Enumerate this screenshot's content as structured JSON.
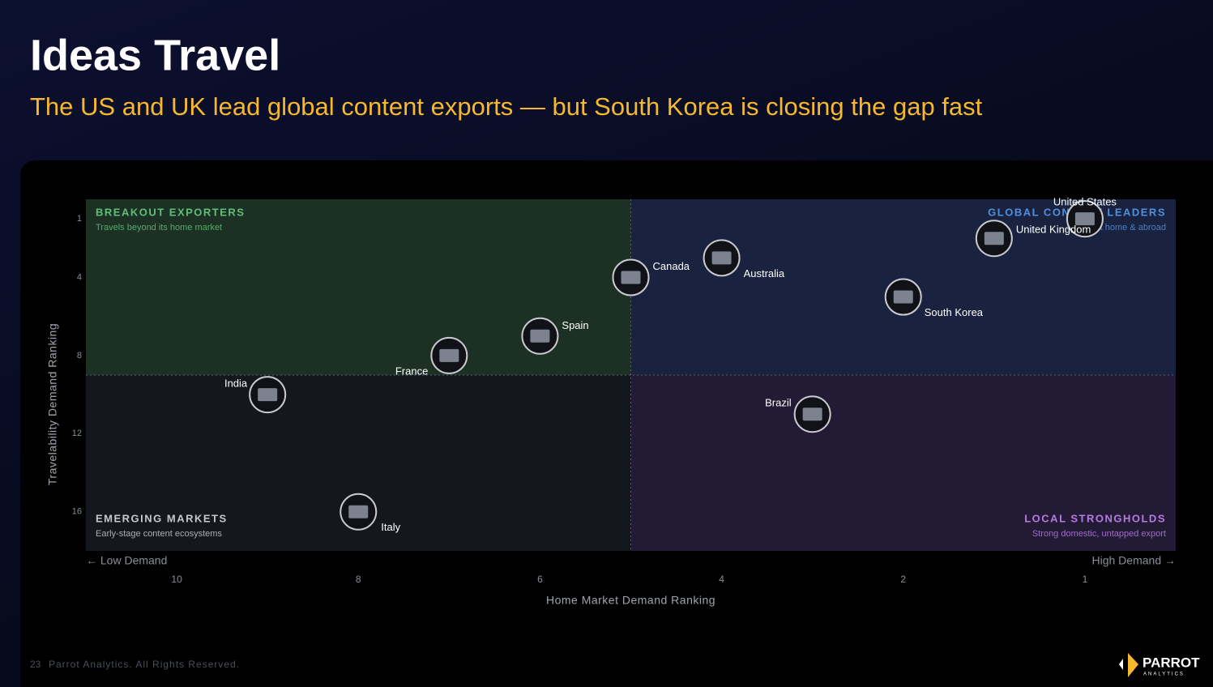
{
  "header": {
    "title": "Ideas Travel",
    "subtitle": "The US and UK lead global content exports — but South Korea is closing the gap fast"
  },
  "chart_data": {
    "type": "scatter",
    "x_label": "Home Market Demand Ranking",
    "y_label": "Travelability Demand Ranking",
    "x_low_note": "← Low Demand",
    "x_high_note": "High Demand →",
    "categories": [
      "United States",
      "United Kingdom",
      "Australia",
      "Canada",
      "South Korea",
      "Spain",
      "France",
      "India",
      "Brazil",
      "Italy"
    ],
    "x": [
      1,
      1.5,
      4,
      5,
      2,
      6,
      7,
      9,
      3,
      8
    ],
    "values": [
      1,
      2,
      3,
      4,
      5,
      7,
      8,
      10,
      11,
      16
    ],
    "xlim": [
      11,
      0.5
    ],
    "xticks": [
      10,
      8,
      6,
      4,
      2,
      1
    ],
    "ylim": [
      0,
      18
    ],
    "yticks": [
      1,
      4,
      8,
      12,
      16
    ],
    "x_divider": 5,
    "y_divider": 9,
    "quadrants": [
      {
        "title": "BREAKOUT EXPORTERS",
        "subtitle": "Travels beyond its home market",
        "color": "#5fbf7a",
        "fill": "#1c3123"
      },
      {
        "title": "GLOBAL CONTENT LEADERS",
        "subtitle": "Strong at home & abroad",
        "color": "#4f8fe0",
        "fill": "#19233f"
      },
      {
        "title": "EMERGING MARKETS",
        "subtitle": "Early-stage content ecosystems",
        "color": "#c4c7ce",
        "fill": "#15171e"
      },
      {
        "title": "LOCAL STRONGHOLDS",
        "subtitle": "Strong domestic, untapped export",
        "color": "#b57be0",
        "fill": "#231a36"
      }
    ]
  },
  "footer": {
    "page": "23",
    "copyright": "Parrot Analytics. All Rights Reserved.",
    "logo": "PARROT",
    "logo_sub": "ANALYTICS"
  }
}
